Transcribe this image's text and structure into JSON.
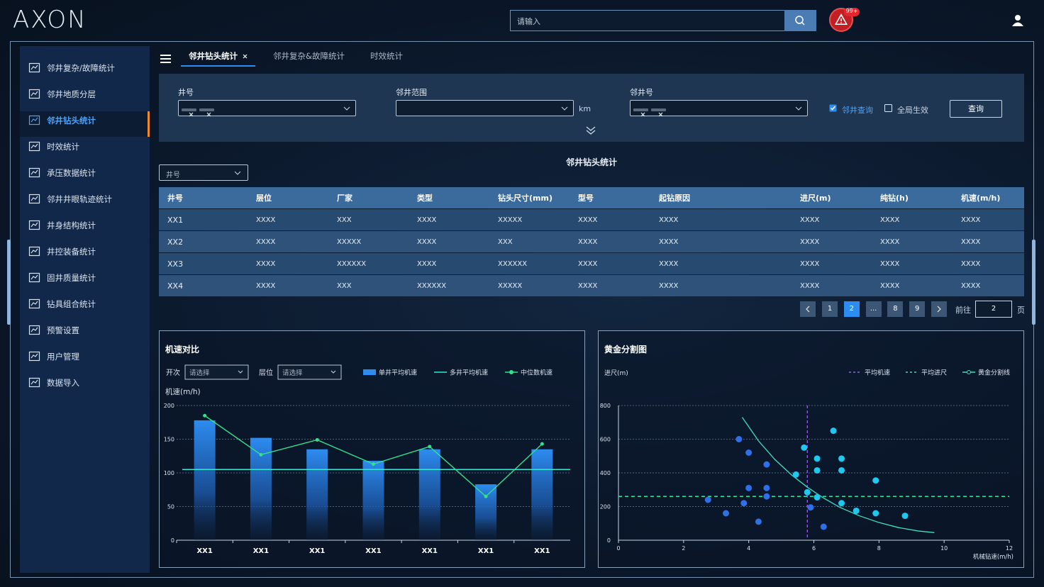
{
  "header": {
    "logo": "AXON",
    "search_placeholder": "请输入",
    "badge": "99+"
  },
  "sidebar": {
    "items": [
      "邻井复杂/故障统计",
      "邻井地质分层",
      "邻井钻头统计",
      "时效统计",
      "承压数据统计",
      "邻井井眼轨迹统计",
      "井身结构统计",
      "井控装备统计",
      "固井质量统计",
      "钻具组合统计",
      "预警设置",
      "用户管理",
      "数据导入"
    ],
    "active": 2
  },
  "tabs": {
    "items": [
      "邻井钻头统计",
      "邻井复杂&故障统计",
      "时效统计"
    ],
    "active": 0
  },
  "filters": {
    "well_label": "井号",
    "well_tags": [
      "标签",
      "标签"
    ],
    "range_label": "邻井范围",
    "range_unit": "km",
    "neighbor_label": "邻井号",
    "neighbor_tags": [
      "标签",
      "标签"
    ],
    "neighbor_query": "邻井查询",
    "global": "全局生效",
    "query": "查询"
  },
  "table": {
    "title": "邻井钻头统计",
    "select": "井号",
    "headers": [
      "井号",
      "层位",
      "厂家",
      "类型",
      "钻头尺寸(mm)",
      "型号",
      "起钻原因",
      "进尺(m)",
      "纯钻(h)",
      "机速(m/h)"
    ],
    "rows": [
      [
        "XX1",
        "XXXX",
        "XXX",
        "XXXX",
        "XXXXX",
        "XXXX",
        "XXXX",
        "XXXX",
        "XXXX",
        "XXXX"
      ],
      [
        "XX2",
        "XXXX",
        "XXXXX",
        "XXXX",
        "XXX",
        "XXXX",
        "XXXX",
        "XXXX",
        "XXXX",
        "XXXX"
      ],
      [
        "XX3",
        "XXXX",
        "XXXXXX",
        "XXXX",
        "XXXXXX",
        "XXXX",
        "XXXX",
        "XXXX",
        "XXXX",
        "XXXX"
      ],
      [
        "XX4",
        "XXXX",
        "XXX",
        "XXXXXX",
        "XXXXX",
        "XXXX",
        "XXXX",
        "XXXX",
        "XXXX",
        "XXXX"
      ]
    ]
  },
  "pagination": {
    "pages": [
      "1",
      "2",
      "...",
      "8",
      "9"
    ],
    "current": 1,
    "goto_label": "前往",
    "goto_value": "2",
    "goto_unit": "页"
  },
  "chart_data": [
    {
      "type": "bar",
      "title": "机速对比",
      "filter1_label": "开次",
      "filter1_placeholder": "请选择",
      "filter2_label": "层位",
      "filter2_placeholder": "请选择",
      "y_label": "机速(m/h)",
      "categories": [
        "XX1",
        "XX1",
        "XX1",
        "XX1",
        "XX1",
        "XX1",
        "XX1"
      ],
      "ylim": [
        0,
        200
      ],
      "yticks": [
        0,
        50,
        100,
        150,
        200
      ],
      "grid": true,
      "series": [
        {
          "name": "单井平均机速",
          "type": "bar",
          "color": "#2d8cf0",
          "values": [
            178,
            152,
            135,
            118,
            135,
            83,
            135
          ]
        },
        {
          "name": "多井平均机速",
          "type": "hline",
          "color": "#2ee8d8",
          "value": 105
        },
        {
          "name": "中位数机速",
          "type": "line",
          "color": "#34e08a",
          "values": [
            185,
            127,
            149,
            113,
            139,
            65,
            143
          ]
        }
      ]
    },
    {
      "type": "scatter",
      "title": "黄金分割图",
      "y_label": "进尺(m)",
      "x_label": "机械钻速(m/h)",
      "xlim": [
        0,
        12
      ],
      "xticks": [
        0,
        2,
        4,
        6,
        8,
        10,
        12
      ],
      "ylim": [
        0,
        800
      ],
      "yticks": [
        0,
        200,
        400,
        600,
        800
      ],
      "grid": true,
      "series": [
        {
          "name": "平均机速",
          "type": "vline",
          "color": "#9b5cf0",
          "value": 5.8
        },
        {
          "name": "平均进尺",
          "type": "hline",
          "color": "#2ee89a",
          "value": 260
        },
        {
          "name": "黄金分割线",
          "type": "line",
          "color": "#3de0c0",
          "x": [
            3.8,
            4.3,
            4.8,
            5.3,
            5.8,
            6.3,
            6.8,
            7.4,
            8,
            8.6,
            9.2,
            9.7
          ],
          "values": [
            730,
            590,
            480,
            390,
            315,
            250,
            195,
            145,
            105,
            75,
            55,
            45
          ]
        },
        {
          "type": "scatter",
          "color": "#2f6fe8",
          "x": [
            2.75,
            3.3,
            3.7,
            4.0,
            4.0,
            3.85,
            4.3,
            4.55,
            4.55,
            4.55,
            5.9,
            6.3
          ],
          "values": [
            240,
            160,
            600,
            520,
            310,
            220,
            110,
            450,
            310,
            260,
            195,
            80
          ]
        },
        {
          "type": "scatter",
          "color": "#1ec8f0",
          "x": [
            6.6,
            5.7,
            6.1,
            6.85,
            6.1,
            6.85,
            5.45,
            5.8,
            6.1,
            6.85,
            7.9,
            7.3,
            7.9,
            8.8
          ],
          "values": [
            650,
            550,
            485,
            485,
            415,
            415,
            390,
            285,
            255,
            220,
            355,
            175,
            160,
            145
          ]
        }
      ]
    }
  ]
}
